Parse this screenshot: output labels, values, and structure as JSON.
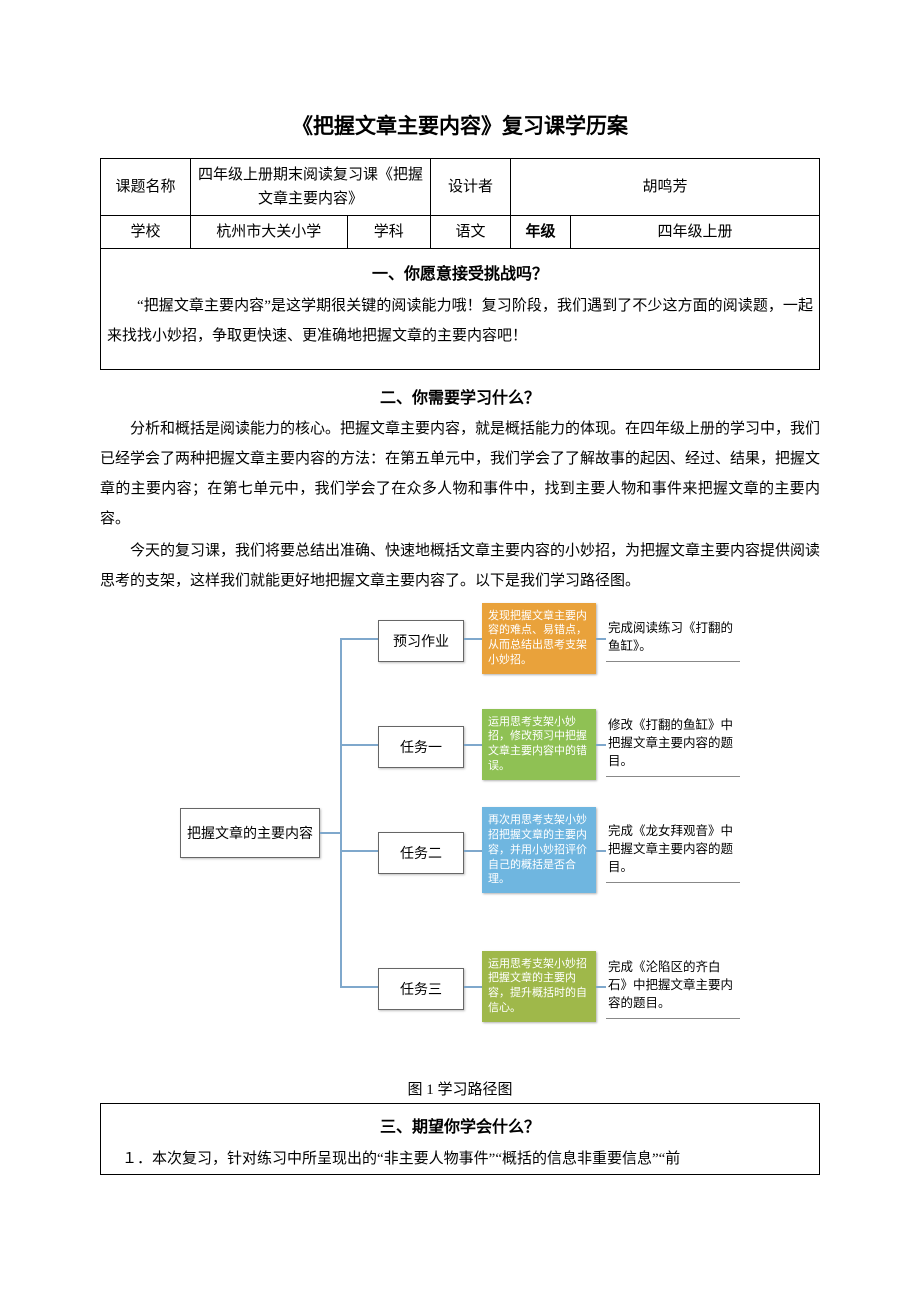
{
  "doc_title": "《把握文章主要内容》复习课学历案",
  "info_table": {
    "labels": {
      "topic": "课题名称",
      "designer": "设计者",
      "school": "学校",
      "subject": "学科",
      "grade": "年级"
    },
    "values": {
      "topic": "四年级上册期末阅读复习课《把握文章主要内容》",
      "designer": "胡鸣芳",
      "school": "杭州市大关小学",
      "subject_label": "学科",
      "subject_value": "语文",
      "grade_value": "四年级上册"
    }
  },
  "section1": {
    "title": "一、你愿意接受挑战吗？",
    "para": "“把握文章主要内容”是这学期很关键的阅读能力哦！复习阶段，我们遇到了不少这方面的阅读题，一起来找找小妙招，争取更快速、更准确地把握文章的主要内容吧！"
  },
  "section2": {
    "title": "二、你需要学习什么？",
    "para1": "分析和概括是阅读能力的核心。把握文章主要内容，就是概括能力的体现。在四年级上册的学习中，我们已经学会了两种把握文章主要内容的方法：在第五单元中，我们学会了了解故事的起因、经过、结果，把握文章的主要内容；在第七单元中，我们学会了在众多人物和事件中，找到主要人物和事件来把握文章的主要内容。",
    "para2": "今天的复习课，我们将要总结出准确、快速地概括文章主要内容的小妙招，为把握文章主要内容提供阅读思考的支架，这样我们就能更好地把握文章主要内容了。以下是我们学习路径图。"
  },
  "flowchart": {
    "root": "把握文章的主要内容",
    "bracket_color": "#7fa8cc",
    "rows": [
      {
        "step": "预习作业",
        "note": "发现把握文章主要内容的难点、易错点，从而总结出思考支架小妙招。",
        "note_bg": "#e9a23b",
        "out": "完成阅读练习《打翻的鱼缸》。"
      },
      {
        "step": "任务一",
        "note": "运用思考支架小妙招，修改预习中把握文章主要内容中的错误。",
        "note_bg": "#8fc154",
        "out": "修改《打翻的鱼缸》中把握文章主要内容的题目。"
      },
      {
        "step": "任务二",
        "note": "再次用思考支架小妙招把握文章的主要内容，并用小妙招评价自己的概括是否合理。",
        "note_bg": "#6fb6e0",
        "out": "完成《龙女拜观音》中把握文章主要内容的题目。"
      },
      {
        "step": "任务三",
        "note": "运用思考支架小妙招把握文章的主要内容，提升概括时的自信心。",
        "note_bg": "#9fb84a",
        "out": "完成《沦陷区的齐白石》中把握文章主要内容的题目。"
      }
    ],
    "caption": "图 1 学习路径图"
  },
  "section3": {
    "title": "三、期望你学会什么？",
    "item1": "１．本次复习，针对练习中所呈现出的“非主要人物事件”“概括的信息非重要信息”“前"
  }
}
